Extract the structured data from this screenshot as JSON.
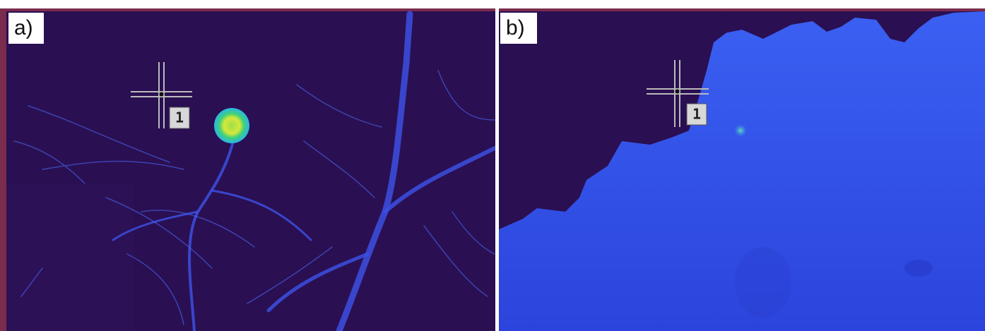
{
  "panels": [
    {
      "label": "a)",
      "marker": "1"
    },
    {
      "label": "b)",
      "marker": "1"
    }
  ]
}
